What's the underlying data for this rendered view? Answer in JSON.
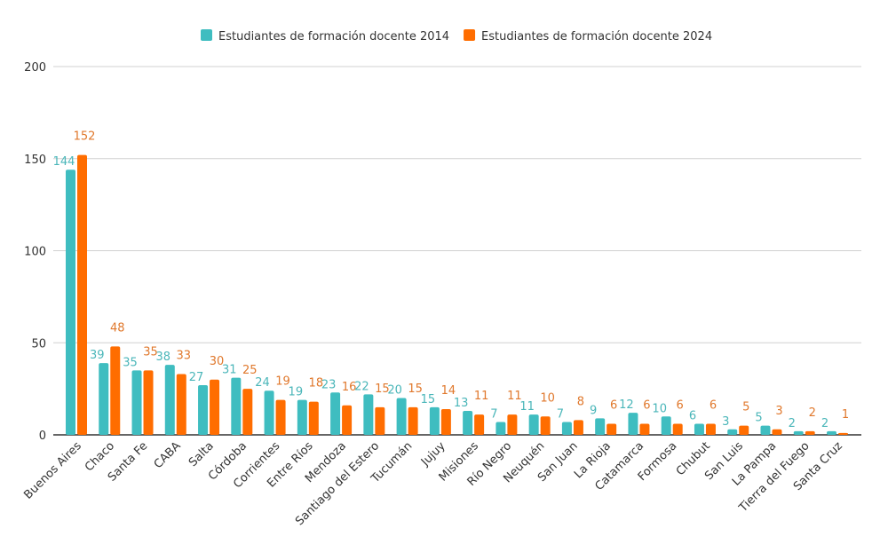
{
  "chart_data": {
    "type": "bar",
    "title": "",
    "xlabel": "",
    "ylabel": "",
    "ylim": [
      0,
      200
    ],
    "yticks": [
      0,
      50,
      100,
      150,
      200
    ],
    "grid": true,
    "legend_position": "top",
    "categories": [
      "Buenos Aires",
      "Chaco",
      "Santa Fe",
      "CABA",
      "Salta",
      "Córdoba",
      "Corrientes",
      "Entre Ríos",
      "Mendoza",
      "Santiago del Estero",
      "Tucumán",
      "Jujuy",
      "Misiones",
      "Río Negro",
      "Neuquén",
      "San Juan",
      "La Rioja",
      "Catamarca",
      "Formosa",
      "Chubut",
      "San Luis",
      "La Pampa",
      "Tierra del Fuego",
      "Santa Cruz"
    ],
    "series": [
      {
        "name": "Estudiantes de formación docente 2014",
        "color": "#3fbdc0",
        "label_color": "#4ab6b9",
        "values": [
          144,
          39,
          35,
          38,
          27,
          31,
          24,
          19,
          23,
          22,
          20,
          15,
          13,
          7,
          11,
          7,
          9,
          12,
          10,
          6,
          3,
          5,
          2,
          2
        ]
      },
      {
        "name": "Estudiantes de formación docente 2024",
        "color": "#ff6d00",
        "label_color": "#e0782c",
        "values": [
          152,
          48,
          35,
          33,
          30,
          25,
          19,
          18,
          16,
          15,
          15,
          14,
          11,
          11,
          10,
          8,
          6,
          6,
          6,
          6,
          5,
          3,
          2,
          1
        ]
      }
    ]
  }
}
